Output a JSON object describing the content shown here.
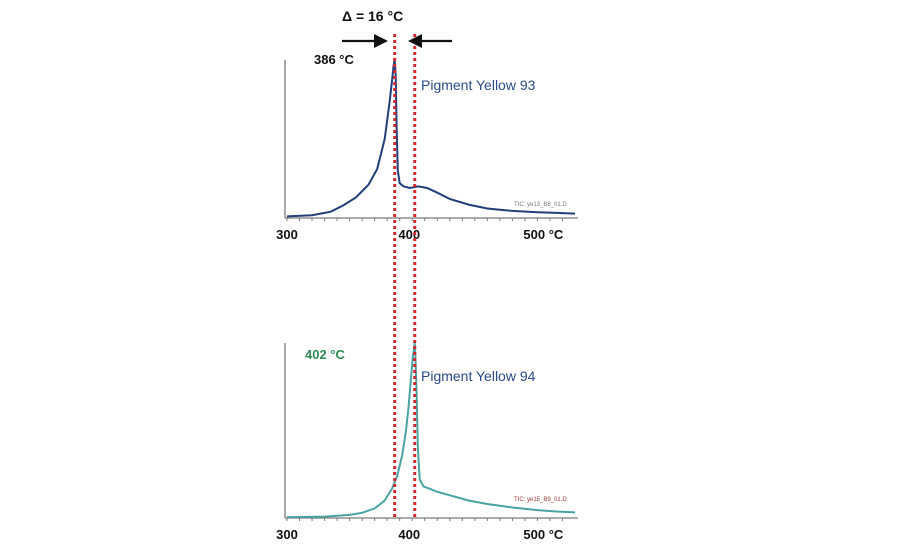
{
  "annotation": {
    "delta_text": "Δ = 16 °C",
    "peak_line_color": "#d0282e"
  },
  "chart_data": [
    {
      "type": "line",
      "x_unit": "°C",
      "xlim": [
        300,
        530
      ],
      "ylim": [
        0,
        1
      ],
      "tick_labels": [
        "300",
        "400",
        "500 °C"
      ],
      "tick_values": [
        300,
        400,
        500
      ],
      "series": [
        {
          "name": "Pigment Yellow 93",
          "color": "#223e7a",
          "points": [
            [
              300,
              0.01
            ],
            [
              320,
              0.018
            ],
            [
              335,
              0.04
            ],
            [
              345,
              0.08
            ],
            [
              355,
              0.13
            ],
            [
              365,
              0.21
            ],
            [
              372,
              0.31
            ],
            [
              378,
              0.5
            ],
            [
              382,
              0.74
            ],
            [
              384,
              0.88
            ],
            [
              385.2,
              0.97
            ],
            [
              386,
              1.0
            ],
            [
              386.8,
              0.9
            ],
            [
              387.5,
              0.58
            ],
            [
              388.5,
              0.3
            ],
            [
              390,
              0.22
            ],
            [
              393,
              0.2
            ],
            [
              398,
              0.19
            ],
            [
              405,
              0.2
            ],
            [
              412,
              0.19
            ],
            [
              420,
              0.16
            ],
            [
              430,
              0.12
            ],
            [
              445,
              0.085
            ],
            [
              460,
              0.06
            ],
            [
              480,
              0.045
            ],
            [
              500,
              0.037
            ],
            [
              515,
              0.032
            ],
            [
              530,
              0.028
            ]
          ]
        }
      ],
      "peak_label": "386 °C",
      "peak_label_color": "#111111",
      "peak_x": 386,
      "tic_text": "TIC: ye13_B8_01.D",
      "tic_color": "#777777"
    },
    {
      "type": "line",
      "x_unit": "°C",
      "xlim": [
        300,
        530
      ],
      "ylim": [
        0,
        1
      ],
      "tick_labels": [
        "300",
        "400",
        "500 °C"
      ],
      "tick_values": [
        300,
        400,
        500
      ],
      "series": [
        {
          "name": "Pigment Yellow 94",
          "color": "#4aa3a0",
          "points": [
            [
              300,
              0.005
            ],
            [
              330,
              0.008
            ],
            [
              350,
              0.018
            ],
            [
              360,
              0.03
            ],
            [
              370,
              0.055
            ],
            [
              378,
              0.1
            ],
            [
              384,
              0.17
            ],
            [
              388,
              0.24
            ],
            [
              392,
              0.36
            ],
            [
              395,
              0.5
            ],
            [
              397,
              0.63
            ],
            [
              399,
              0.8
            ],
            [
              400.5,
              0.92
            ],
            [
              401.5,
              0.97
            ],
            [
              402,
              1.0
            ],
            [
              402.5,
              0.94
            ],
            [
              403.5,
              0.72
            ],
            [
              404.5,
              0.4
            ],
            [
              406,
              0.22
            ],
            [
              409,
              0.18
            ],
            [
              413,
              0.17
            ],
            [
              420,
              0.15
            ],
            [
              430,
              0.13
            ],
            [
              445,
              0.1
            ],
            [
              460,
              0.08
            ],
            [
              480,
              0.06
            ],
            [
              500,
              0.045
            ],
            [
              515,
              0.037
            ],
            [
              530,
              0.032
            ]
          ]
        }
      ],
      "peak_label": "402 °C",
      "peak_label_color": "#2e8a55",
      "peak_x": 402,
      "tic_text": "TIC: ye15_B9_01.D",
      "tic_color": "#a03838"
    }
  ]
}
